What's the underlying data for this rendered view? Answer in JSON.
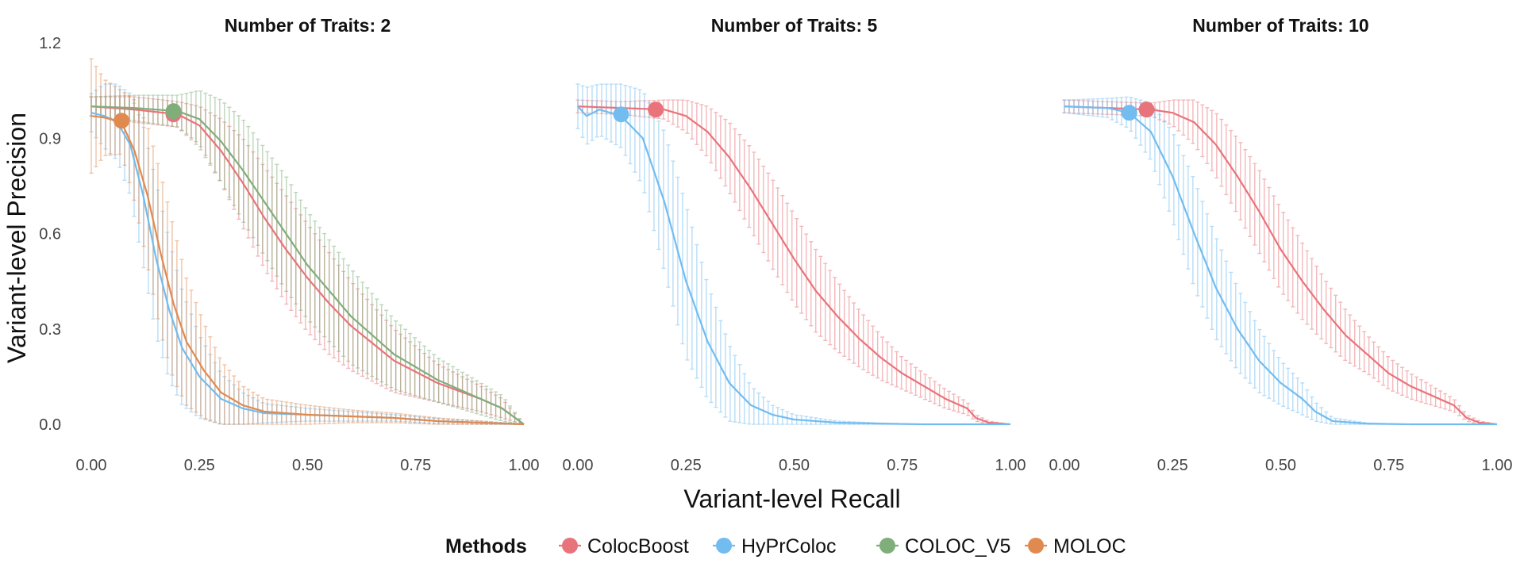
{
  "chart_data": {
    "type": "line",
    "xlabel": "Variant-level Recall",
    "ylabel": "Variant-level Precision",
    "xlim": [
      0,
      1
    ],
    "ylim": [
      0,
      1.2
    ],
    "x_ticks": [
      "0.00",
      "0.25",
      "0.50",
      "0.75",
      "1.00"
    ],
    "y_ticks": [
      "0.0",
      "0.3",
      "0.6",
      "0.9",
      "1.2"
    ],
    "grid": false,
    "legend": {
      "title": "Methods",
      "placement": "bottom",
      "items": [
        {
          "name": "ColocBoost",
          "color": "#E8737A"
        },
        {
          "name": "HyPrColoc",
          "color": "#72BCF0"
        },
        {
          "name": "COLOC_V5",
          "color": "#7FAE7B"
        },
        {
          "name": "MOLOC",
          "color": "#E08A50"
        }
      ]
    },
    "panels": [
      {
        "title": "Number of Traits: 2",
        "series": [
          {
            "name": "ColocBoost",
            "color": "#E8737A",
            "x": [
              0.0,
              0.1,
              0.2,
              0.25,
              0.3,
              0.35,
              0.4,
              0.45,
              0.5,
              0.55,
              0.6,
              0.7,
              0.8,
              0.9,
              0.95,
              1.0
            ],
            "y": [
              1.0,
              0.99,
              0.975,
              0.94,
              0.86,
              0.76,
              0.65,
              0.55,
              0.46,
              0.38,
              0.31,
              0.2,
              0.13,
              0.08,
              0.05,
              0.0
            ],
            "err": [
              0.03,
              0.04,
              0.04,
              0.06,
              0.1,
              0.14,
              0.16,
              0.17,
              0.17,
              0.16,
              0.14,
              0.1,
              0.06,
              0.04,
              0.03,
              0.0
            ],
            "point": {
              "x": 0.19,
              "y": 0.975
            }
          },
          {
            "name": "HyPrColoc",
            "color": "#72BCF0",
            "x": [
              0.0,
              0.03,
              0.06,
              0.09,
              0.12,
              0.15,
              0.18,
              0.21,
              0.25,
              0.3,
              0.35,
              0.4,
              0.5,
              0.6,
              0.7,
              0.8,
              0.9,
              1.0
            ],
            "y": [
              0.98,
              0.97,
              0.95,
              0.88,
              0.72,
              0.52,
              0.36,
              0.24,
              0.15,
              0.08,
              0.05,
              0.035,
              0.03,
              0.025,
              0.02,
              0.01,
              0.005,
              0.0
            ],
            "err": [
              0.06,
              0.1,
              0.12,
              0.16,
              0.22,
              0.24,
              0.22,
              0.18,
              0.13,
              0.08,
              0.05,
              0.03,
              0.02,
              0.015,
              0.01,
              0.008,
              0.005,
              0.0
            ],
            "point": null
          },
          {
            "name": "COLOC_V5",
            "color": "#7FAE7B",
            "x": [
              0.0,
              0.1,
              0.2,
              0.25,
              0.3,
              0.35,
              0.4,
              0.45,
              0.5,
              0.55,
              0.6,
              0.7,
              0.8,
              0.9,
              0.95,
              1.0
            ],
            "y": [
              1.0,
              0.995,
              0.985,
              0.96,
              0.89,
              0.8,
              0.7,
              0.6,
              0.5,
              0.42,
              0.34,
              0.22,
              0.14,
              0.08,
              0.05,
              0.0
            ],
            "err": [
              0.03,
              0.04,
              0.05,
              0.09,
              0.13,
              0.16,
              0.17,
              0.18,
              0.17,
              0.16,
              0.15,
              0.11,
              0.07,
              0.05,
              0.04,
              0.0
            ],
            "point": {
              "x": 0.19,
              "y": 0.985
            }
          },
          {
            "name": "MOLOC",
            "color": "#E08A50",
            "x": [
              0.0,
              0.03,
              0.07,
              0.1,
              0.13,
              0.16,
              0.19,
              0.22,
              0.26,
              0.3,
              0.35,
              0.4,
              0.5,
              0.6,
              0.7,
              0.8,
              0.9,
              1.0
            ],
            "y": [
              0.97,
              0.965,
              0.95,
              0.86,
              0.72,
              0.54,
              0.38,
              0.26,
              0.17,
              0.1,
              0.06,
              0.04,
              0.03,
              0.025,
              0.02,
              0.01,
              0.005,
              0.0
            ],
            "err": [
              0.18,
              0.12,
              0.1,
              0.16,
              0.22,
              0.25,
              0.24,
              0.2,
              0.15,
              0.1,
              0.06,
              0.04,
              0.03,
              0.02,
              0.015,
              0.01,
              0.005,
              0.0
            ],
            "point": {
              "x": 0.07,
              "y": 0.955
            }
          }
        ]
      },
      {
        "title": "Number of Traits: 5",
        "series": [
          {
            "name": "ColocBoost",
            "color": "#E8737A",
            "x": [
              0.0,
              0.1,
              0.2,
              0.25,
              0.3,
              0.35,
              0.4,
              0.45,
              0.5,
              0.55,
              0.6,
              0.65,
              0.7,
              0.75,
              0.8,
              0.85,
              0.9,
              0.92,
              0.95,
              1.0
            ],
            "y": [
              1.0,
              0.995,
              0.99,
              0.97,
              0.92,
              0.84,
              0.74,
              0.63,
              0.52,
              0.42,
              0.34,
              0.27,
              0.21,
              0.16,
              0.12,
              0.08,
              0.05,
              0.02,
              0.005,
              0.0
            ],
            "err": [
              0.02,
              0.02,
              0.03,
              0.05,
              0.08,
              0.11,
              0.13,
              0.14,
              0.14,
              0.13,
              0.11,
              0.09,
              0.07,
              0.05,
              0.04,
              0.03,
              0.02,
              0.01,
              0.005,
              0.0
            ],
            "point": {
              "x": 0.18,
              "y": 0.99
            }
          },
          {
            "name": "HyPrColoc",
            "color": "#72BCF0",
            "x": [
              0.0,
              0.02,
              0.05,
              0.1,
              0.15,
              0.2,
              0.25,
              0.3,
              0.35,
              0.4,
              0.45,
              0.5,
              0.6,
              0.7,
              0.8,
              0.9,
              1.0
            ],
            "y": [
              1.0,
              0.97,
              0.99,
              0.97,
              0.9,
              0.7,
              0.45,
              0.26,
              0.13,
              0.06,
              0.03,
              0.015,
              0.005,
              0.002,
              0.0,
              0.0,
              0.0
            ],
            "err": [
              0.07,
              0.09,
              0.08,
              0.1,
              0.15,
              0.22,
              0.24,
              0.18,
              0.12,
              0.06,
              0.03,
              0.015,
              0.005,
              0.002,
              0.0,
              0.0,
              0.0
            ],
            "point": {
              "x": 0.1,
              "y": 0.975
            }
          }
        ]
      },
      {
        "title": "Number of Traits: 10",
        "series": [
          {
            "name": "ColocBoost",
            "color": "#E8737A",
            "x": [
              0.0,
              0.1,
              0.2,
              0.25,
              0.3,
              0.35,
              0.4,
              0.45,
              0.5,
              0.55,
              0.6,
              0.65,
              0.7,
              0.75,
              0.8,
              0.85,
              0.9,
              0.93,
              0.96,
              1.0
            ],
            "y": [
              1.0,
              0.995,
              0.99,
              0.98,
              0.95,
              0.88,
              0.78,
              0.67,
              0.55,
              0.45,
              0.36,
              0.28,
              0.22,
              0.16,
              0.12,
              0.09,
              0.06,
              0.02,
              0.005,
              0.0
            ],
            "err": [
              0.02,
              0.02,
              0.02,
              0.04,
              0.07,
              0.1,
              0.12,
              0.13,
              0.13,
              0.12,
              0.1,
              0.08,
              0.06,
              0.05,
              0.04,
              0.03,
              0.02,
              0.01,
              0.005,
              0.0
            ],
            "point": {
              "x": 0.19,
              "y": 0.99
            }
          },
          {
            "name": "HyPrColoc",
            "color": "#72BCF0",
            "x": [
              0.0,
              0.1,
              0.15,
              0.2,
              0.25,
              0.3,
              0.35,
              0.4,
              0.45,
              0.5,
              0.55,
              0.58,
              0.62,
              0.7,
              0.8,
              0.9,
              1.0
            ],
            "y": [
              1.0,
              0.995,
              0.98,
              0.92,
              0.78,
              0.6,
              0.43,
              0.3,
              0.2,
              0.13,
              0.08,
              0.04,
              0.01,
              0.002,
              0.0,
              0.0,
              0.0
            ],
            "err": [
              0.02,
              0.03,
              0.05,
              0.09,
              0.14,
              0.17,
              0.16,
              0.13,
              0.1,
              0.07,
              0.05,
              0.03,
              0.01,
              0.002,
              0.0,
              0.0,
              0.0
            ],
            "point": {
              "x": 0.15,
              "y": 0.98
            }
          }
        ]
      }
    ]
  }
}
